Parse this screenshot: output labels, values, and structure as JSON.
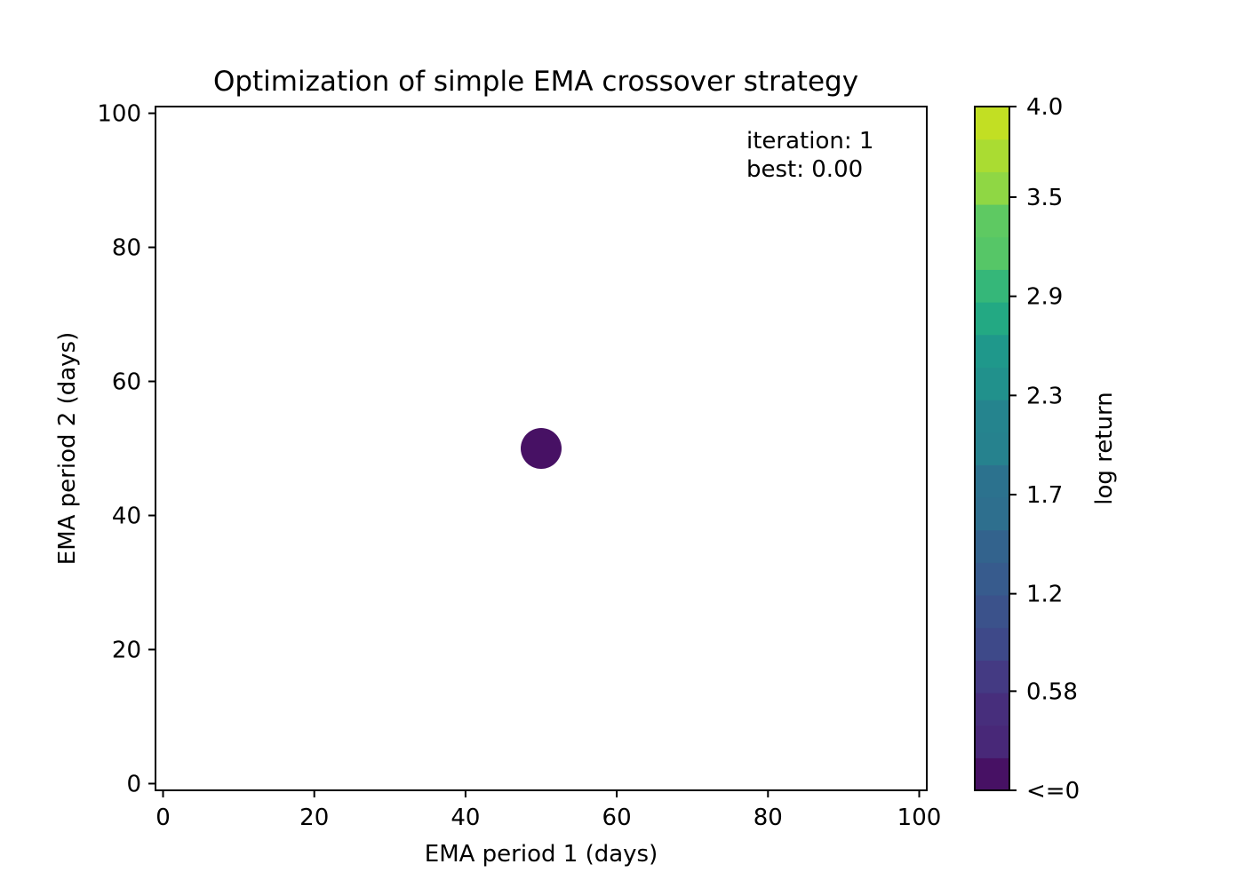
{
  "chart_data": {
    "type": "scatter",
    "title": "Optimization of simple EMA crossover strategy",
    "xlabel": "EMA period 1 (days)",
    "ylabel": "EMA period 2 (days)",
    "xlim": [
      -1,
      101
    ],
    "ylim": [
      -1,
      101
    ],
    "xticks": [
      0,
      20,
      40,
      60,
      80,
      100
    ],
    "yticks": [
      0,
      20,
      40,
      60,
      80,
      100
    ],
    "grid": false,
    "annotation": {
      "line1": "iteration: 1",
      "line2": "best: 0.00"
    },
    "points": [
      {
        "x": 50,
        "y": 50,
        "value": 0.0
      }
    ],
    "colorbar": {
      "label": "log return",
      "range": [
        0,
        4.0
      ],
      "tick_values": [
        0,
        0.58,
        1.15,
        1.73,
        2.31,
        2.89,
        3.47,
        4.0
      ],
      "tick_labels": [
        "<=0",
        "0.58",
        "1.2",
        "1.7",
        "2.3",
        "2.9",
        "3.5",
        "4.0"
      ],
      "colors": [
        "#471164",
        "#482878",
        "#472e7c",
        "#443a83",
        "#3e4989",
        "#3b528b",
        "#375b8d",
        "#33638d",
        "#2e6f8e",
        "#2c728e",
        "#26828e",
        "#25848e",
        "#21918c",
        "#1f988b",
        "#23a983",
        "#35b779",
        "#56c667",
        "#5ec962",
        "#8fd744",
        "#aadc32",
        "#c2df23"
      ]
    }
  }
}
